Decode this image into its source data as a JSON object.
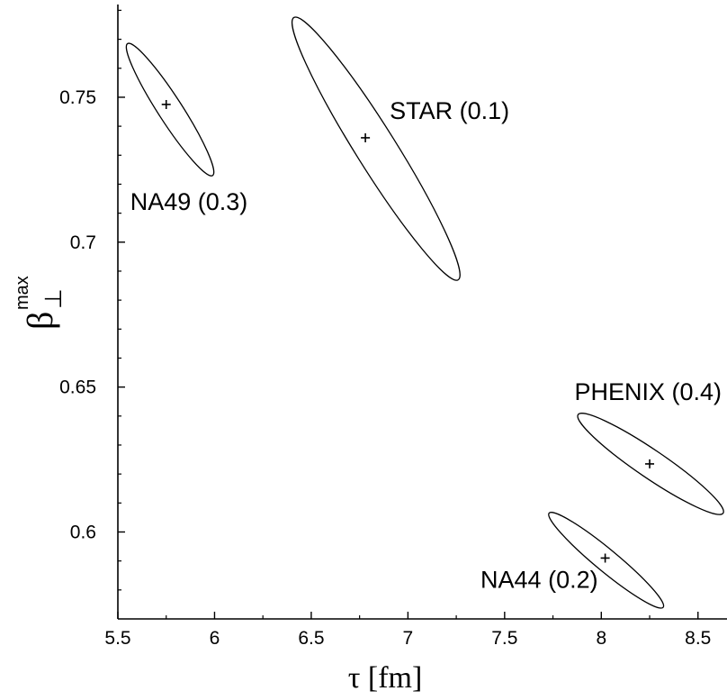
{
  "chart_data": {
    "type": "scatter",
    "title": "",
    "xlabel": "τ  [fm]",
    "ylabel": {
      "symbol": "β",
      "subscript": "⊥",
      "superscript": "max"
    },
    "xlim": [
      5.5,
      8.65
    ],
    "ylim": [
      0.57,
      0.782
    ],
    "x_ticks": [
      5.5,
      6,
      6.5,
      7,
      7.5,
      8,
      8.5
    ],
    "x_tick_labels": [
      "5.5",
      "6",
      "6.5",
      "7",
      "7.5",
      "8",
      "8.5"
    ],
    "y_ticks": [
      0.6,
      0.65,
      0.7,
      0.75
    ],
    "y_tick_labels": [
      "0.6",
      "0.65",
      "0.7",
      "0.75"
    ],
    "grid": false,
    "legend": "none",
    "series": [
      {
        "name": "NA49 (0.3)",
        "center": {
          "x": 5.75,
          "y": 0.7475
        },
        "ellipse_extremes": {
          "upper_left": [
            5.55,
            0.7685
          ],
          "lower_right": [
            5.99,
            0.723
          ]
        }
      },
      {
        "name": "STAR (0.1)",
        "center": {
          "x": 6.78,
          "y": 0.736
        },
        "ellipse_extremes": {
          "upper_left": [
            6.41,
            0.7775
          ],
          "lower_right": [
            7.26,
            0.687
          ]
        }
      },
      {
        "name": "PHENIX (0.4)",
        "center": {
          "x": 8.25,
          "y": 0.6235
        },
        "ellipse_extremes": {
          "upper_left": [
            7.88,
            0.6405
          ],
          "lower_right": [
            8.63,
            0.6065
          ]
        }
      },
      {
        "name": "NA44 (0.2)",
        "center": {
          "x": 8.02,
          "y": 0.591
        },
        "ellipse_extremes": {
          "upper_left": [
            7.73,
            0.6065
          ],
          "lower_right": [
            8.32,
            0.574
          ]
        }
      }
    ]
  },
  "ellipse_stroke_color": "#000000",
  "background_color": "#ffffff"
}
